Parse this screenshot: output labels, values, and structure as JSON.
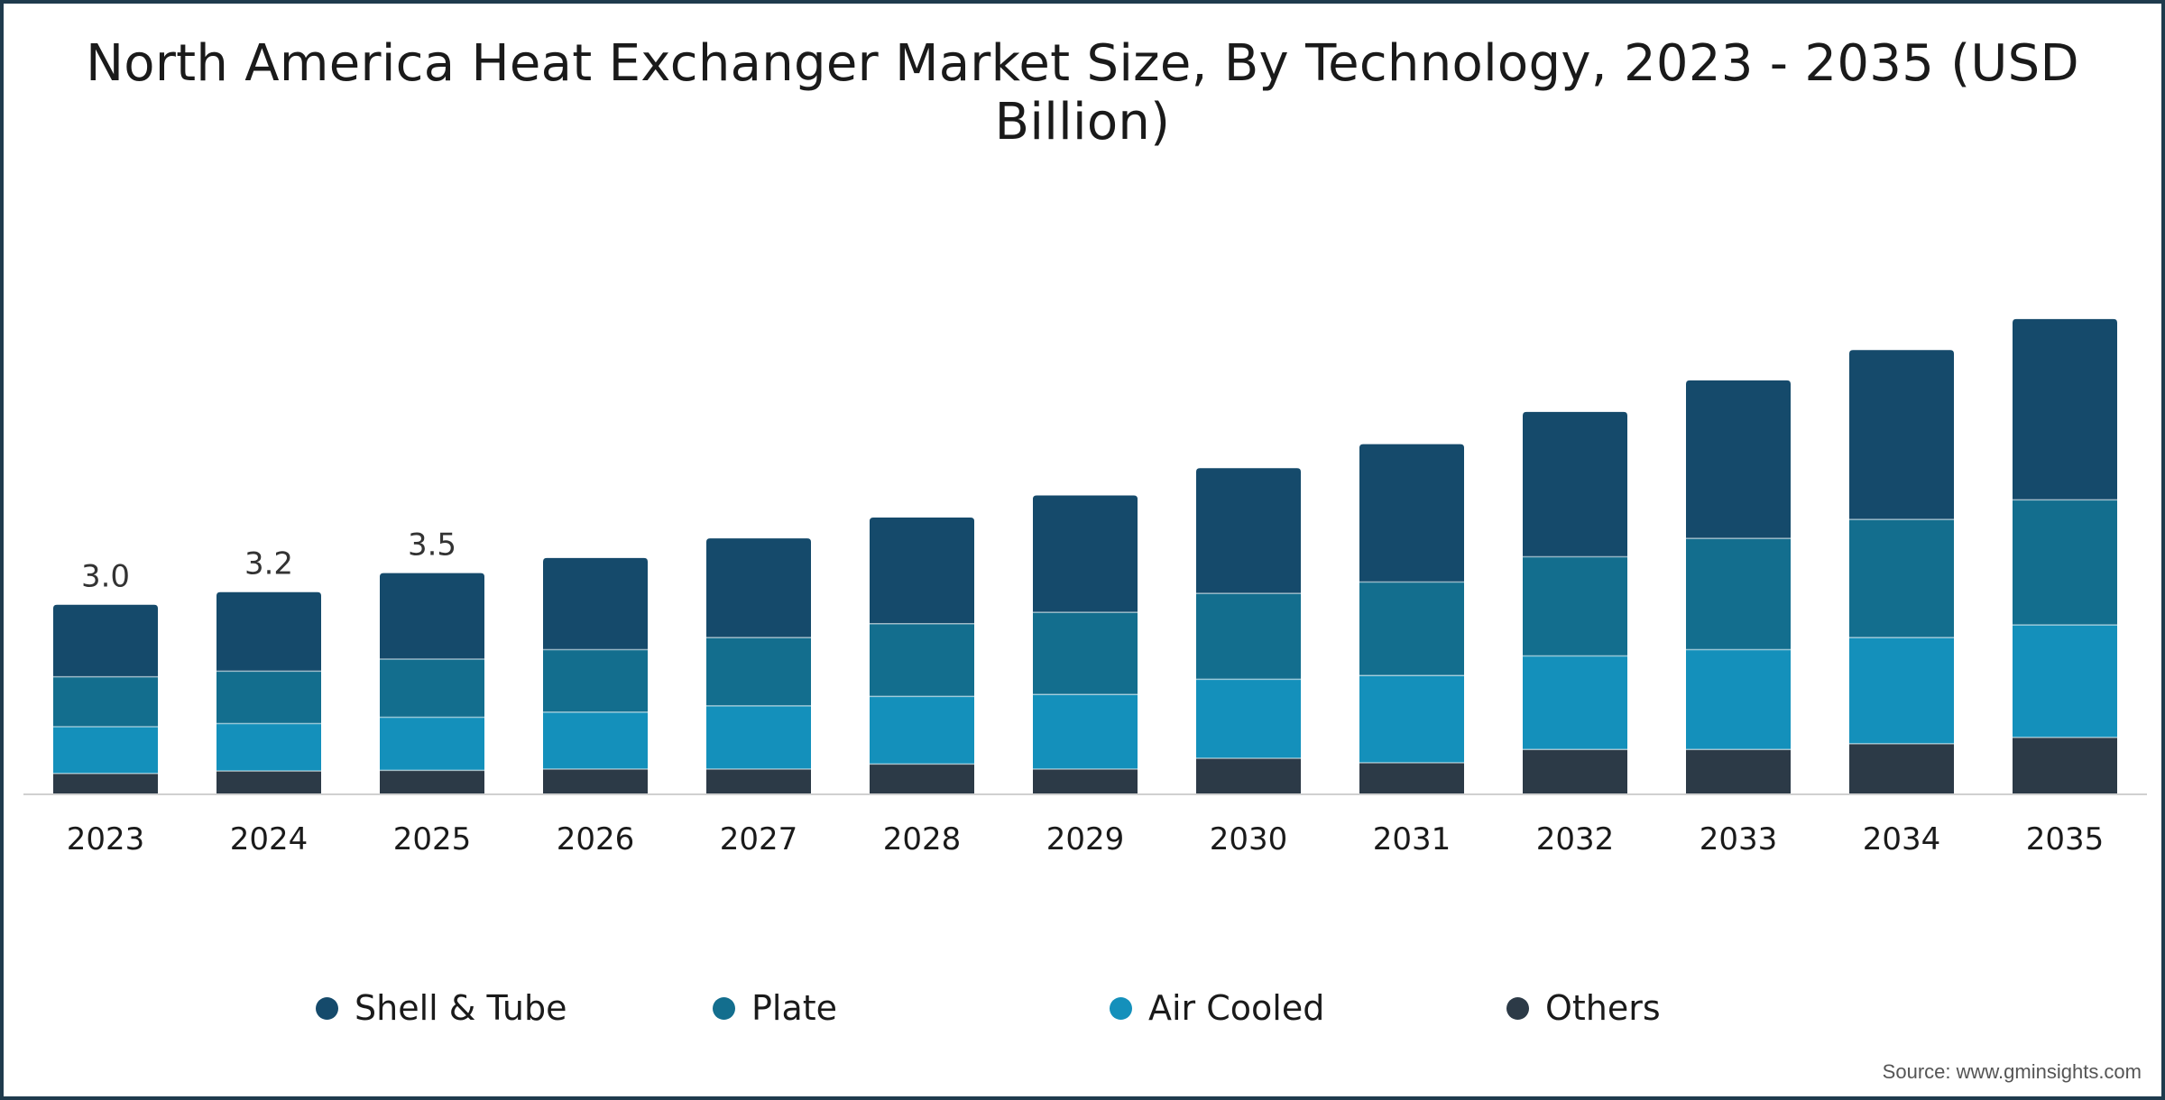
{
  "chart_data": {
    "type": "bar",
    "stacked": true,
    "title": "North America Heat Exchanger Market Size, By Technology, 2023 - 2035 (USD Billion)",
    "categories": [
      "2023",
      "2024",
      "2025",
      "2026",
      "2027",
      "2028",
      "2029",
      "2030",
      "2031",
      "2032",
      "2033",
      "2034",
      "2035"
    ],
    "series": [
      {
        "name": "Others",
        "color": "#2c3a47",
        "values": [
          0.33,
          0.37,
          0.38,
          0.4,
          0.4,
          0.48,
          0.4,
          0.57,
          0.5,
          0.71,
          0.71,
          0.8,
          0.9
        ]
      },
      {
        "name": "Air Cooled",
        "color": "#1490bb",
        "values": [
          0.74,
          0.75,
          0.84,
          0.9,
          1.0,
          1.07,
          1.18,
          1.25,
          1.38,
          1.48,
          1.58,
          1.68,
          1.78
        ]
      },
      {
        "name": "Plate",
        "color": "#136e8e",
        "values": [
          0.79,
          0.83,
          0.92,
          0.99,
          1.08,
          1.15,
          1.3,
          1.36,
          1.48,
          1.57,
          1.76,
          1.87,
          1.98
        ]
      },
      {
        "name": "Shell & Tube",
        "color": "#154a6b",
        "values": [
          1.14,
          1.25,
          1.36,
          1.45,
          1.57,
          1.68,
          1.85,
          1.98,
          2.18,
          2.29,
          2.5,
          2.68,
          2.86
        ]
      }
    ],
    "data_labels": {
      "2023": "3.0",
      "2024": "3.2",
      "2025": "3.5"
    },
    "ylim": [
      0,
      10.5
    ],
    "xlabel": "",
    "ylabel": "",
    "grid": false,
    "legend_position": "bottom"
  },
  "legend": [
    {
      "label": "Shell & Tube",
      "color": "#154a6b"
    },
    {
      "label": "Plate",
      "color": "#136e8e"
    },
    {
      "label": "Air Cooled",
      "color": "#1490bb"
    },
    {
      "label": "Others",
      "color": "#2c3a47"
    }
  ],
  "source": "Source: www.gminsights.com"
}
